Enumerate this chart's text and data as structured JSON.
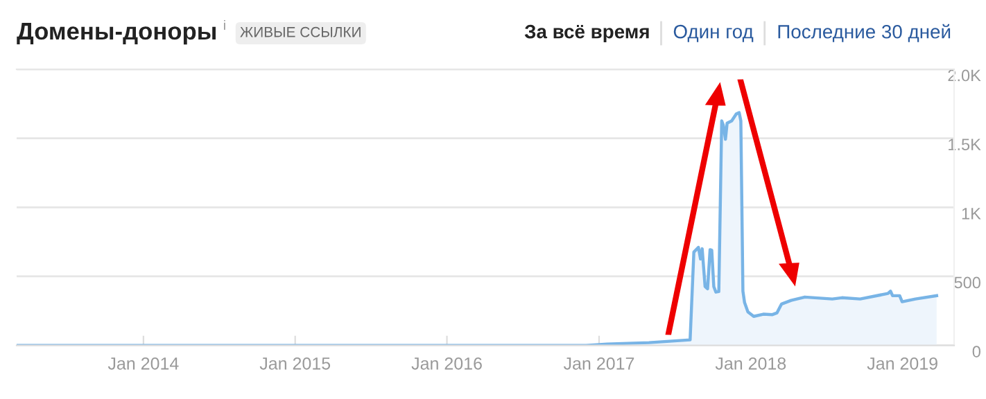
{
  "chart_data": {
    "type": "area",
    "title": "Домены-доноры",
    "subtitle": "ЖИВЫЕ ССЫЛКИ",
    "annotations": [
      "i",
      "За всё время",
      "Один год",
      "Последние 30 дней"
    ],
    "x": [
      "2013-03-02",
      "2016-12-01",
      "2017-01-20",
      "2017-05-01",
      "2017-08-08",
      "2017-08-17",
      "2017-08-28",
      "2017-09-02",
      "2017-09-06",
      "2017-09-13",
      "2017-09-19",
      "2017-09-25",
      "2017-09-29",
      "2017-10-04",
      "2017-10-09",
      "2017-10-16",
      "2017-10-23",
      "2017-10-27",
      "2017-11-01",
      "2017-11-05",
      "2017-11-16",
      "2017-11-27",
      "2017-12-04",
      "2017-12-08",
      "2017-12-13",
      "2017-12-17",
      "2017-12-25",
      "2018-01-08",
      "2018-01-31",
      "2018-02-22",
      "2018-03-05",
      "2018-03-16",
      "2018-04-08",
      "2018-05-11",
      "2018-07-16",
      "2018-08-08",
      "2018-09-21",
      "2018-11-27",
      "2018-12-03",
      "2018-12-08",
      "2018-12-25",
      "2018-12-31",
      "2019-02-01",
      "2019-03-24"
    ],
    "series": [
      {
        "color": "#78b4e6",
        "values": [
          0,
          0,
          10,
          20,
          40,
          676,
          710,
          626,
          700,
          426,
          410,
          693,
          690,
          426,
          386,
          390,
          1626,
          1593,
          1493,
          1610,
          1626,
          1676,
          1686,
          1626,
          393,
          310,
          243,
          210,
          226,
          223,
          236,
          300,
          326,
          350,
          336,
          345,
          336,
          376,
          393,
          360,
          360,
          316,
          336,
          360
        ]
      }
    ],
    "xlim": [
      "2013-03-02",
      "2019-05-05"
    ],
    "xticks": [
      {
        "value": "2014-01-01",
        "label": "Jan 2014"
      },
      {
        "value": "2015-01-01",
        "label": "Jan 2015"
      },
      {
        "value": "2016-01-01",
        "label": "Jan 2016"
      },
      {
        "value": "2017-01-01",
        "label": "Jan 2017"
      },
      {
        "value": "2018-01-01",
        "label": "Jan 2018"
      },
      {
        "value": "2019-01-01",
        "label": "Jan 2019"
      }
    ],
    "ylim": [
      0,
      2000
    ],
    "yticks": [
      0,
      500,
      {
        "value": 1000,
        "label": "1K"
      },
      {
        "value": 1500,
        "label": "1.5K"
      },
      {
        "value": 2000,
        "label": "2.0K"
      }
    ],
    "grid": "y",
    "legend": false
  }
}
